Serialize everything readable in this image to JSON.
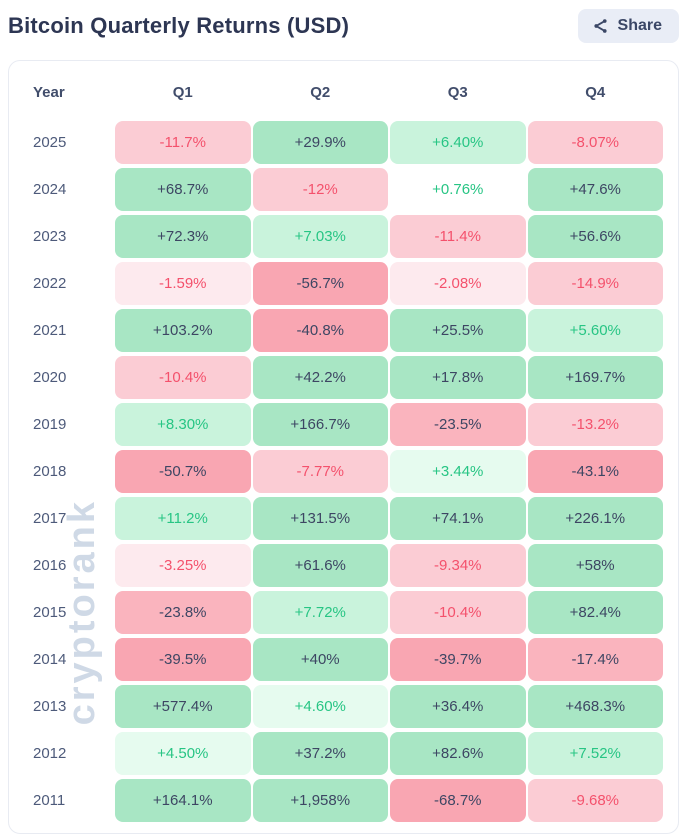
{
  "header": {
    "title": "Bitcoin Quarterly Returns (USD)",
    "share_label": "Share"
  },
  "watermark": {
    "text": "cryptorank"
  },
  "colors": {
    "accent_green_text": "#27c584",
    "accent_red_text": "#f4516c",
    "dark_text": "#3d4663",
    "share_button_bg": "#e9edf6",
    "card_border": "#e8ebf2",
    "watermark": "#cfd9e6",
    "tones": {
      "g1": {
        "bg": "#e6fbef",
        "fg": "#27c584"
      },
      "g2": {
        "bg": "#c9f3dc",
        "fg": "#27c584"
      },
      "g3": {
        "bg": "#a8e6c4",
        "fg": "#3d4663"
      },
      "w0": {
        "bg": "#ffffff",
        "fg": "#27c584"
      },
      "r1": {
        "bg": "#fdeaee",
        "fg": "#f4516c"
      },
      "r2": {
        "bg": "#fbccd4",
        "fg": "#f4516c"
      },
      "r3": {
        "bg": "#fab4be",
        "fg": "#3d4663"
      },
      "r4": {
        "bg": "#f9a6b2",
        "fg": "#3d4663"
      }
    }
  },
  "chart_data": {
    "type": "heatmap",
    "title": "Bitcoin Quarterly Returns (USD)",
    "columns": [
      "Year",
      "Q1",
      "Q2",
      "Q3",
      "Q4"
    ],
    "unit": "percent",
    "rows": [
      {
        "year": "2025",
        "cells": [
          {
            "v": "-11.7%",
            "tone": "r2"
          },
          {
            "v": "+29.9%",
            "tone": "g3"
          },
          {
            "v": "+6.40%",
            "tone": "g2"
          },
          {
            "v": "-8.07%",
            "tone": "r2"
          }
        ]
      },
      {
        "year": "2024",
        "cells": [
          {
            "v": "+68.7%",
            "tone": "g3"
          },
          {
            "v": "-12%",
            "tone": "r2"
          },
          {
            "v": "+0.76%",
            "tone": "w0"
          },
          {
            "v": "+47.6%",
            "tone": "g3"
          }
        ]
      },
      {
        "year": "2023",
        "cells": [
          {
            "v": "+72.3%",
            "tone": "g3"
          },
          {
            "v": "+7.03%",
            "tone": "g2"
          },
          {
            "v": "-11.4%",
            "tone": "r2"
          },
          {
            "v": "+56.6%",
            "tone": "g3"
          }
        ]
      },
      {
        "year": "2022",
        "cells": [
          {
            "v": "-1.59%",
            "tone": "r1"
          },
          {
            "v": "-56.7%",
            "tone": "r4"
          },
          {
            "v": "-2.08%",
            "tone": "r1"
          },
          {
            "v": "-14.9%",
            "tone": "r2"
          }
        ]
      },
      {
        "year": "2021",
        "cells": [
          {
            "v": "+103.2%",
            "tone": "g3"
          },
          {
            "v": "-40.8%",
            "tone": "r4"
          },
          {
            "v": "+25.5%",
            "tone": "g3"
          },
          {
            "v": "+5.60%",
            "tone": "g2"
          }
        ]
      },
      {
        "year": "2020",
        "cells": [
          {
            "v": "-10.4%",
            "tone": "r2"
          },
          {
            "v": "+42.2%",
            "tone": "g3"
          },
          {
            "v": "+17.8%",
            "tone": "g3"
          },
          {
            "v": "+169.7%",
            "tone": "g3"
          }
        ]
      },
      {
        "year": "2019",
        "cells": [
          {
            "v": "+8.30%",
            "tone": "g2"
          },
          {
            "v": "+166.7%",
            "tone": "g3"
          },
          {
            "v": "-23.5%",
            "tone": "r3"
          },
          {
            "v": "-13.2%",
            "tone": "r2"
          }
        ]
      },
      {
        "year": "2018",
        "cells": [
          {
            "v": "-50.7%",
            "tone": "r4"
          },
          {
            "v": "-7.77%",
            "tone": "r2"
          },
          {
            "v": "+3.44%",
            "tone": "g1"
          },
          {
            "v": "-43.1%",
            "tone": "r4"
          }
        ]
      },
      {
        "year": "2017",
        "cells": [
          {
            "v": "+11.2%",
            "tone": "g2"
          },
          {
            "v": "+131.5%",
            "tone": "g3"
          },
          {
            "v": "+74.1%",
            "tone": "g3"
          },
          {
            "v": "+226.1%",
            "tone": "g3"
          }
        ]
      },
      {
        "year": "2016",
        "cells": [
          {
            "v": "-3.25%",
            "tone": "r1"
          },
          {
            "v": "+61.6%",
            "tone": "g3"
          },
          {
            "v": "-9.34%",
            "tone": "r2"
          },
          {
            "v": "+58%",
            "tone": "g3"
          }
        ]
      },
      {
        "year": "2015",
        "cells": [
          {
            "v": "-23.8%",
            "tone": "r3"
          },
          {
            "v": "+7.72%",
            "tone": "g2"
          },
          {
            "v": "-10.4%",
            "tone": "r2"
          },
          {
            "v": "+82.4%",
            "tone": "g3"
          }
        ]
      },
      {
        "year": "2014",
        "cells": [
          {
            "v": "-39.5%",
            "tone": "r4"
          },
          {
            "v": "+40%",
            "tone": "g3"
          },
          {
            "v": "-39.7%",
            "tone": "r4"
          },
          {
            "v": "-17.4%",
            "tone": "r3"
          }
        ]
      },
      {
        "year": "2013",
        "cells": [
          {
            "v": "+577.4%",
            "tone": "g3"
          },
          {
            "v": "+4.60%",
            "tone": "g1"
          },
          {
            "v": "+36.4%",
            "tone": "g3"
          },
          {
            "v": "+468.3%",
            "tone": "g3"
          }
        ]
      },
      {
        "year": "2012",
        "cells": [
          {
            "v": "+4.50%",
            "tone": "g1"
          },
          {
            "v": "+37.2%",
            "tone": "g3"
          },
          {
            "v": "+82.6%",
            "tone": "g3"
          },
          {
            "v": "+7.52%",
            "tone": "g2"
          }
        ]
      },
      {
        "year": "2011",
        "cells": [
          {
            "v": "+164.1%",
            "tone": "g3"
          },
          {
            "v": "+1,958%",
            "tone": "g3"
          },
          {
            "v": "-68.7%",
            "tone": "r4"
          },
          {
            "v": "-9.68%",
            "tone": "r2"
          }
        ]
      }
    ]
  }
}
